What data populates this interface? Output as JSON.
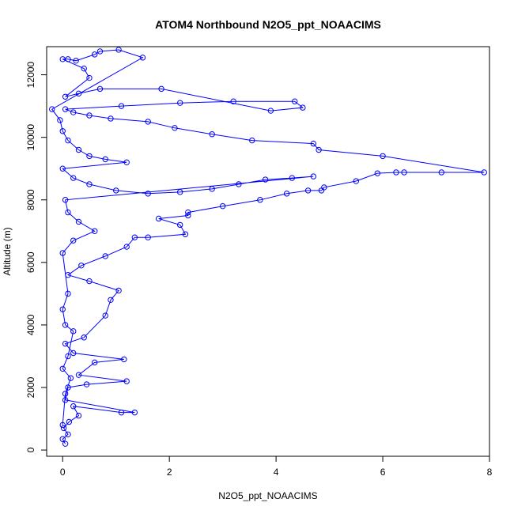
{
  "chart_data": {
    "type": "scatter",
    "title": "ATOM4 Northbound N2O5_ppt_NOAACIMS",
    "xlabel": "N2O5_ppt_NOAACIMS",
    "ylabel": "Altitude (m)",
    "xlim": [
      -0.3,
      8.0
    ],
    "ylim": [
      -200,
      12900
    ],
    "xticks": [
      0,
      2,
      4,
      6,
      8
    ],
    "yticks": [
      0,
      2000,
      4000,
      6000,
      8000,
      10000,
      12000
    ],
    "grid": false,
    "legend": "none",
    "markers": "open-circles-connected",
    "color": "#0000ff",
    "series": [
      {
        "points": [
          [
            0.05,
            200
          ],
          [
            0.0,
            350
          ],
          [
            0.1,
            500
          ],
          [
            0.02,
            700
          ],
          [
            0.12,
            900
          ],
          [
            0.3,
            1100
          ],
          [
            0.2,
            1400
          ],
          [
            1.1,
            1200
          ],
          [
            1.35,
            1200
          ],
          [
            0.05,
            1600
          ],
          [
            0.1,
            2000
          ],
          [
            0.45,
            2100
          ],
          [
            1.2,
            2200
          ],
          [
            0.3,
            2400
          ],
          [
            0.6,
            2800
          ],
          [
            1.15,
            2900
          ],
          [
            0.2,
            3100
          ],
          [
            0.05,
            3400
          ],
          [
            0.4,
            3600
          ],
          [
            0.8,
            4300
          ],
          [
            0.9,
            4800
          ],
          [
            1.05,
            5100
          ],
          [
            0.5,
            5400
          ],
          [
            0.1,
            5600
          ],
          [
            0.35,
            5900
          ],
          [
            0.8,
            6200
          ],
          [
            1.2,
            6500
          ],
          [
            1.35,
            6800
          ],
          [
            1.6,
            6800
          ],
          [
            2.3,
            6900
          ],
          [
            2.2,
            7200
          ],
          [
            1.8,
            7400
          ],
          [
            2.35,
            7500
          ],
          [
            2.35,
            7600
          ],
          [
            3.0,
            7800
          ],
          [
            3.7,
            8000
          ],
          [
            4.2,
            8200
          ],
          [
            4.6,
            8300
          ],
          [
            4.85,
            8300
          ],
          [
            4.9,
            8400
          ],
          [
            5.5,
            8600
          ],
          [
            5.9,
            8850
          ],
          [
            6.25,
            8880
          ],
          [
            6.4,
            8880
          ],
          [
            7.1,
            8880
          ],
          [
            7.9,
            8880
          ],
          [
            6.0,
            9400
          ],
          [
            4.8,
            9600
          ],
          [
            4.7,
            9800
          ],
          [
            3.55,
            9900
          ],
          [
            2.8,
            10100
          ],
          [
            2.1,
            10300
          ],
          [
            1.6,
            10500
          ],
          [
            0.9,
            10600
          ],
          [
            0.5,
            10700
          ],
          [
            0.2,
            10800
          ],
          [
            0.05,
            10900
          ],
          [
            1.1,
            11000
          ],
          [
            2.2,
            11100
          ],
          [
            3.2,
            11150
          ],
          [
            4.35,
            11150
          ],
          [
            4.5,
            10950
          ],
          [
            3.9,
            10850
          ],
          [
            1.85,
            11550
          ],
          [
            0.7,
            11550
          ],
          [
            0.3,
            11400
          ],
          [
            0.05,
            11300
          ],
          [
            0.5,
            11900
          ],
          [
            0.4,
            12200
          ],
          [
            0.0,
            12500
          ],
          [
            0.1,
            12500
          ],
          [
            0.25,
            12450
          ],
          [
            0.6,
            12650
          ],
          [
            0.7,
            12750
          ],
          [
            1.05,
            12800
          ],
          [
            1.5,
            12550
          ],
          [
            -0.2,
            10900
          ],
          [
            -0.05,
            10550
          ],
          [
            0.0,
            10200
          ],
          [
            0.1,
            9900
          ],
          [
            0.3,
            9600
          ],
          [
            0.5,
            9400
          ],
          [
            0.8,
            9300
          ],
          [
            1.2,
            9200
          ],
          [
            0.0,
            9000
          ],
          [
            0.2,
            8700
          ],
          [
            0.5,
            8500
          ],
          [
            1.0,
            8300
          ],
          [
            1.6,
            8200
          ],
          [
            2.2,
            8250
          ],
          [
            2.8,
            8350
          ],
          [
            3.3,
            8500
          ],
          [
            3.8,
            8650
          ],
          [
            4.3,
            8700
          ],
          [
            4.7,
            8750
          ],
          [
            0.05,
            8000
          ],
          [
            0.1,
            7600
          ],
          [
            0.3,
            7300
          ],
          [
            0.6,
            7000
          ],
          [
            0.2,
            6700
          ],
          [
            0.0,
            6300
          ],
          [
            0.1,
            5000
          ],
          [
            0.0,
            4500
          ],
          [
            0.05,
            4000
          ],
          [
            0.2,
            3800
          ],
          [
            0.1,
            3000
          ],
          [
            0.0,
            2600
          ],
          [
            0.15,
            2300
          ],
          [
            0.05,
            1800
          ],
          [
            0.0,
            800
          ]
        ]
      }
    ]
  }
}
